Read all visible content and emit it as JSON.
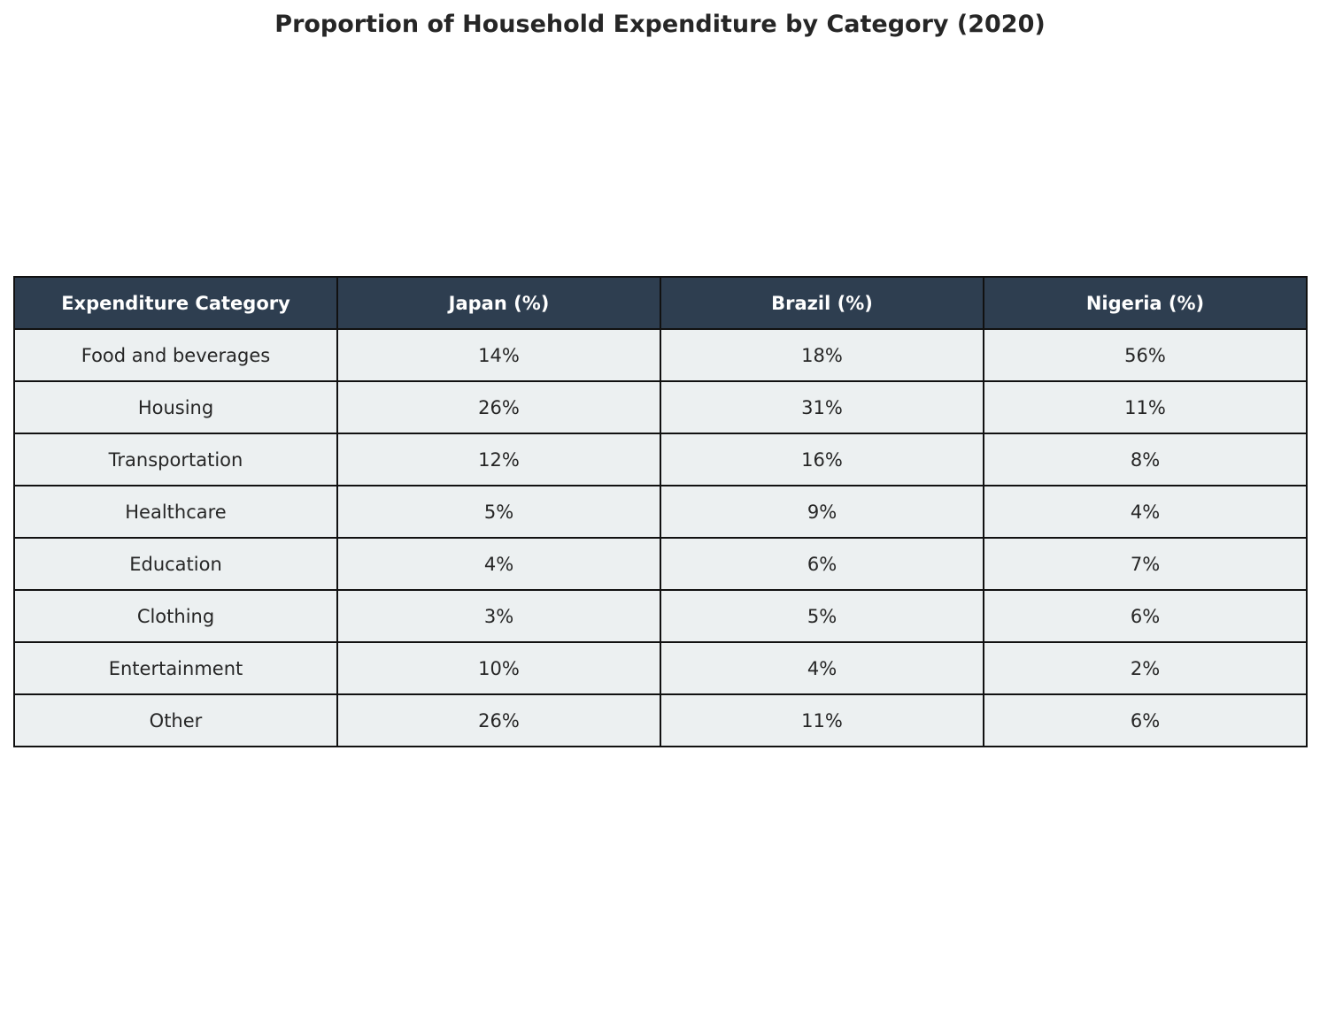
{
  "chart_data": {
    "type": "table",
    "title": "Proportion of Household Expenditure by Category (2020)",
    "columns": [
      "Expenditure Category",
      "Japan (%)",
      "Brazil (%)",
      "Nigeria (%)"
    ],
    "rows": [
      [
        "Food and beverages",
        "14%",
        "18%",
        "56%"
      ],
      [
        "Housing",
        "26%",
        "31%",
        "11%"
      ],
      [
        "Transportation",
        "12%",
        "16%",
        "8%"
      ],
      [
        "Healthcare",
        "5%",
        "9%",
        "4%"
      ],
      [
        "Education",
        "4%",
        "6%",
        "7%"
      ],
      [
        "Clothing",
        "3%",
        "5%",
        "6%"
      ],
      [
        "Entertainment",
        "10%",
        "4%",
        "2%"
      ],
      [
        "Other",
        "26%",
        "11%",
        "6%"
      ]
    ],
    "colors": {
      "header_background": "#2e3e50",
      "header_text": "#ffffff",
      "cell_background": "#ecf0f1",
      "cell_text": "#262626",
      "border": "#111111"
    }
  }
}
